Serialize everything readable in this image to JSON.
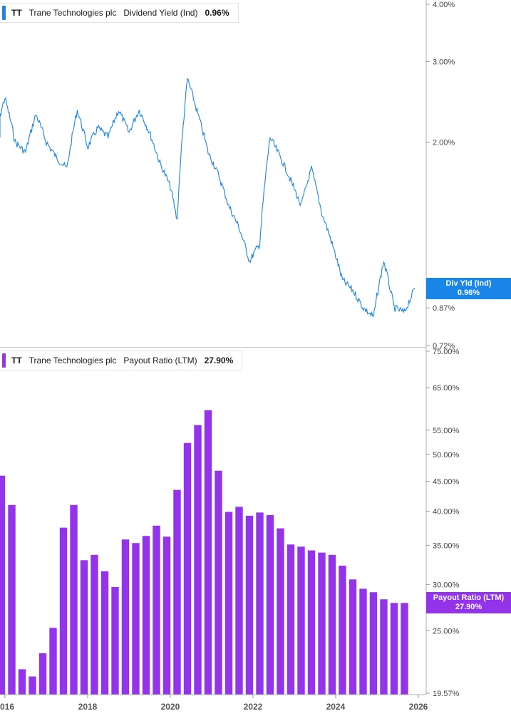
{
  "chart_data": [
    {
      "type": "line",
      "ticker": "TT",
      "company": "Trane Technologies plc",
      "metric": "Dividend Yield (Ind)",
      "current_value": "0.96%",
      "tag_label": "Div Yld (Ind)",
      "color": "#1a85e8",
      "y_scale": "log",
      "ylim": [
        0.72,
        4.0
      ],
      "yticks": [
        "4.00%",
        "3.00%",
        "2.00%",
        "0.87%",
        "0.72%"
      ],
      "ytick_values": [
        4.0,
        3.0,
        2.0,
        0.87,
        0.72
      ],
      "x": [
        "2015-10",
        "2016-01",
        "2016-04",
        "2016-07",
        "2016-10",
        "2017-01",
        "2017-04",
        "2017-07",
        "2017-10",
        "2018-01",
        "2018-04",
        "2018-07",
        "2018-10",
        "2019-01",
        "2019-04",
        "2019-07",
        "2019-10",
        "2020-01",
        "2020-03",
        "2020-06",
        "2020-09",
        "2020-12",
        "2021-03",
        "2021-06",
        "2021-09",
        "2021-12",
        "2022-03",
        "2022-06",
        "2022-09",
        "2022-12",
        "2023-03",
        "2023-06",
        "2023-09",
        "2023-12",
        "2024-03",
        "2024-06",
        "2024-09",
        "2024-12",
        "2025-03",
        "2025-06",
        "2025-09",
        "2025-12"
      ],
      "values": [
        2.05,
        2.5,
        2.0,
        1.9,
        2.3,
        2.0,
        1.85,
        1.75,
        2.35,
        1.95,
        2.15,
        2.05,
        2.35,
        2.1,
        2.35,
        2.1,
        1.8,
        1.6,
        1.35,
        2.75,
        2.3,
        1.9,
        1.7,
        1.45,
        1.3,
        1.1,
        1.2,
        2.05,
        1.85,
        1.65,
        1.45,
        1.75,
        1.4,
        1.2,
        1.0,
        0.95,
        0.87,
        0.83,
        1.1,
        0.87,
        0.85,
        0.96
      ]
    },
    {
      "type": "bar",
      "ticker": "TT",
      "company": "Trane Technologies plc",
      "metric": "Payout Ratio (LTM)",
      "current_value": "27.90%",
      "tag_label": "Payout Ratio (LTM)",
      "color": "#9333ea",
      "y_scale": "log",
      "ylim": [
        19.57,
        75.0
      ],
      "yticks": [
        "75.00%",
        "65.00%",
        "55.00%",
        "50.00%",
        "45.00%",
        "40.00%",
        "35.00%",
        "30.00%",
        "25.00%",
        "19.57%"
      ],
      "ytick_values": [
        75,
        65,
        55,
        50,
        45,
        40,
        35,
        30,
        25,
        19.57
      ],
      "x_start": "2015-12",
      "values": [
        46.0,
        41.0,
        21.5,
        20.9,
        22.9,
        25.3,
        37.5,
        41.0,
        33.0,
        33.7,
        31.6,
        29.7,
        35.8,
        35.3,
        36.3,
        37.8,
        36.2,
        43.5,
        52.3,
        56.1,
        59.5,
        46.9,
        39.9,
        40.7,
        39.3,
        39.8,
        39.4,
        37.4,
        35.1,
        34.8,
        34.3,
        34.0,
        33.7,
        32.3,
        30.6,
        29.5,
        29.1,
        28.3,
        27.9,
        27.9
      ]
    }
  ],
  "x_axis": {
    "labels": [
      "016",
      "2018",
      "2020",
      "2022",
      "2024",
      "2026"
    ],
    "dates": [
      "2016-01",
      "2018-01",
      "2020-01",
      "2022-01",
      "2024-01",
      "2026-01"
    ]
  }
}
